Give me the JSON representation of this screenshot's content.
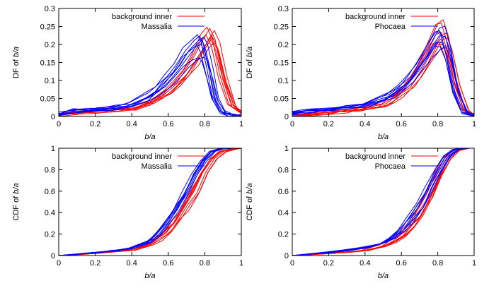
{
  "colors": {
    "background_inner": "#ff0000",
    "other": "#0000ff",
    "axis": "#000000"
  },
  "chart_data": [
    {
      "type": "line",
      "ylabel_prefix": "DF of ",
      "ylabel_var": "b/a",
      "xlabel": "b/a",
      "xlim": [
        0,
        1
      ],
      "ylim": [
        0,
        0.3
      ],
      "xticks": [
        "0",
        "0.2",
        "0.4",
        "0.6",
        "0.8",
        "1"
      ],
      "yticks": [
        "0",
        "0.05",
        "0.1",
        "0.15",
        "0.2",
        "0.25",
        "0.3"
      ],
      "legend_position": "top-left",
      "series": [
        {
          "name": "background inner",
          "color": "#ff0000",
          "x": [
            0,
            0.1,
            0.2,
            0.3,
            0.4,
            0.5,
            0.55,
            0.6,
            0.65,
            0.7,
            0.75,
            0.8,
            0.83,
            0.86,
            0.9,
            0.95,
            1.0
          ],
          "y": [
            0.005,
            0.01,
            0.014,
            0.018,
            0.024,
            0.04,
            0.055,
            0.075,
            0.1,
            0.13,
            0.17,
            0.22,
            0.24,
            0.21,
            0.11,
            0.03,
            0.01
          ]
        },
        {
          "name": "Massalia",
          "color": "#0000ff",
          "x": [
            0,
            0.1,
            0.2,
            0.3,
            0.4,
            0.5,
            0.55,
            0.6,
            0.65,
            0.7,
            0.75,
            0.78,
            0.8,
            0.83,
            0.86,
            0.9,
            0.95,
            1.0
          ],
          "y": [
            0.008,
            0.014,
            0.018,
            0.024,
            0.032,
            0.055,
            0.075,
            0.1,
            0.13,
            0.165,
            0.19,
            0.2,
            0.18,
            0.12,
            0.05,
            0.012,
            0.002,
            0.0
          ]
        }
      ]
    },
    {
      "type": "line",
      "ylabel_prefix": "DF of ",
      "ylabel_var": "b/a",
      "xlabel": "b/a",
      "xlim": [
        0,
        1
      ],
      "ylim": [
        0,
        0.3
      ],
      "xticks": [
        "0",
        "0.2",
        "0.4",
        "0.6",
        "0.8",
        "1"
      ],
      "yticks": [
        "0",
        "0.05",
        "0.1",
        "0.15",
        "0.2",
        "0.25",
        "0.3"
      ],
      "legend_position": "top-left",
      "series": [
        {
          "name": "background inner",
          "color": "#ff0000",
          "x": [
            0,
            0.1,
            0.2,
            0.3,
            0.4,
            0.5,
            0.55,
            0.6,
            0.65,
            0.7,
            0.75,
            0.8,
            0.83,
            0.86,
            0.9,
            0.95,
            1.0
          ],
          "y": [
            0.004,
            0.008,
            0.012,
            0.016,
            0.022,
            0.035,
            0.05,
            0.07,
            0.095,
            0.13,
            0.175,
            0.225,
            0.23,
            0.19,
            0.09,
            0.02,
            0.003
          ]
        },
        {
          "name": "Phocaea",
          "color": "#0000ff",
          "x": [
            0,
            0.1,
            0.2,
            0.3,
            0.4,
            0.5,
            0.55,
            0.6,
            0.65,
            0.7,
            0.75,
            0.8,
            0.83,
            0.86,
            0.9,
            0.95,
            1.0
          ],
          "y": [
            0.01,
            0.015,
            0.02,
            0.026,
            0.033,
            0.048,
            0.062,
            0.08,
            0.105,
            0.14,
            0.18,
            0.22,
            0.22,
            0.17,
            0.07,
            0.012,
            0.002
          ]
        }
      ]
    },
    {
      "type": "line",
      "ylabel_prefix": "CDF of ",
      "ylabel_var": "b/a",
      "xlabel": "b/a",
      "xlim": [
        0,
        1
      ],
      "ylim": [
        0,
        1
      ],
      "xticks": [
        "0",
        "0.2",
        "0.4",
        "0.6",
        "0.8",
        "1"
      ],
      "yticks": [
        "0",
        "0.2",
        "0.4",
        "0.6",
        "0.8",
        "1"
      ],
      "legend_position": "top-left",
      "series": [
        {
          "name": "background inner",
          "color": "#ff0000",
          "x": [
            0,
            0.1,
            0.2,
            0.3,
            0.4,
            0.5,
            0.55,
            0.6,
            0.65,
            0.7,
            0.75,
            0.8,
            0.85,
            0.9,
            0.95,
            1.0
          ],
          "y": [
            0.0,
            0.01,
            0.02,
            0.035,
            0.05,
            0.1,
            0.15,
            0.22,
            0.32,
            0.45,
            0.6,
            0.77,
            0.9,
            0.97,
            0.99,
            1.0
          ]
        },
        {
          "name": "Massalia",
          "color": "#0000ff",
          "x": [
            0,
            0.1,
            0.2,
            0.3,
            0.4,
            0.5,
            0.55,
            0.6,
            0.65,
            0.7,
            0.75,
            0.8,
            0.85,
            0.9,
            0.95,
            1.0
          ],
          "y": [
            0.0,
            0.012,
            0.026,
            0.045,
            0.07,
            0.13,
            0.2,
            0.3,
            0.42,
            0.58,
            0.74,
            0.88,
            0.97,
            0.995,
            1.0,
            1.0
          ]
        }
      ]
    },
    {
      "type": "line",
      "ylabel_prefix": "CDF of ",
      "ylabel_var": "b/a",
      "xlabel": "b/a",
      "xlim": [
        0,
        1
      ],
      "ylim": [
        0,
        1
      ],
      "xticks": [
        "0",
        "0.2",
        "0.4",
        "0.6",
        "0.8",
        "1"
      ],
      "yticks": [
        "0",
        "0.2",
        "0.4",
        "0.6",
        "0.8",
        "1"
      ],
      "legend_position": "top-left",
      "series": [
        {
          "name": "background inner",
          "color": "#ff0000",
          "x": [
            0,
            0.1,
            0.2,
            0.3,
            0.4,
            0.5,
            0.55,
            0.6,
            0.65,
            0.7,
            0.75,
            0.8,
            0.85,
            0.9,
            0.95,
            1.0
          ],
          "y": [
            0.0,
            0.01,
            0.02,
            0.032,
            0.048,
            0.09,
            0.13,
            0.19,
            0.28,
            0.4,
            0.56,
            0.74,
            0.9,
            0.98,
            1.0,
            1.0
          ]
        },
        {
          "name": "Phocaea",
          "color": "#0000ff",
          "x": [
            0,
            0.1,
            0.2,
            0.3,
            0.4,
            0.5,
            0.55,
            0.6,
            0.65,
            0.7,
            0.75,
            0.8,
            0.85,
            0.9,
            0.95,
            1.0
          ],
          "y": [
            0.0,
            0.015,
            0.03,
            0.05,
            0.075,
            0.12,
            0.17,
            0.24,
            0.34,
            0.47,
            0.63,
            0.8,
            0.93,
            0.99,
            1.0,
            1.0
          ]
        }
      ]
    }
  ]
}
